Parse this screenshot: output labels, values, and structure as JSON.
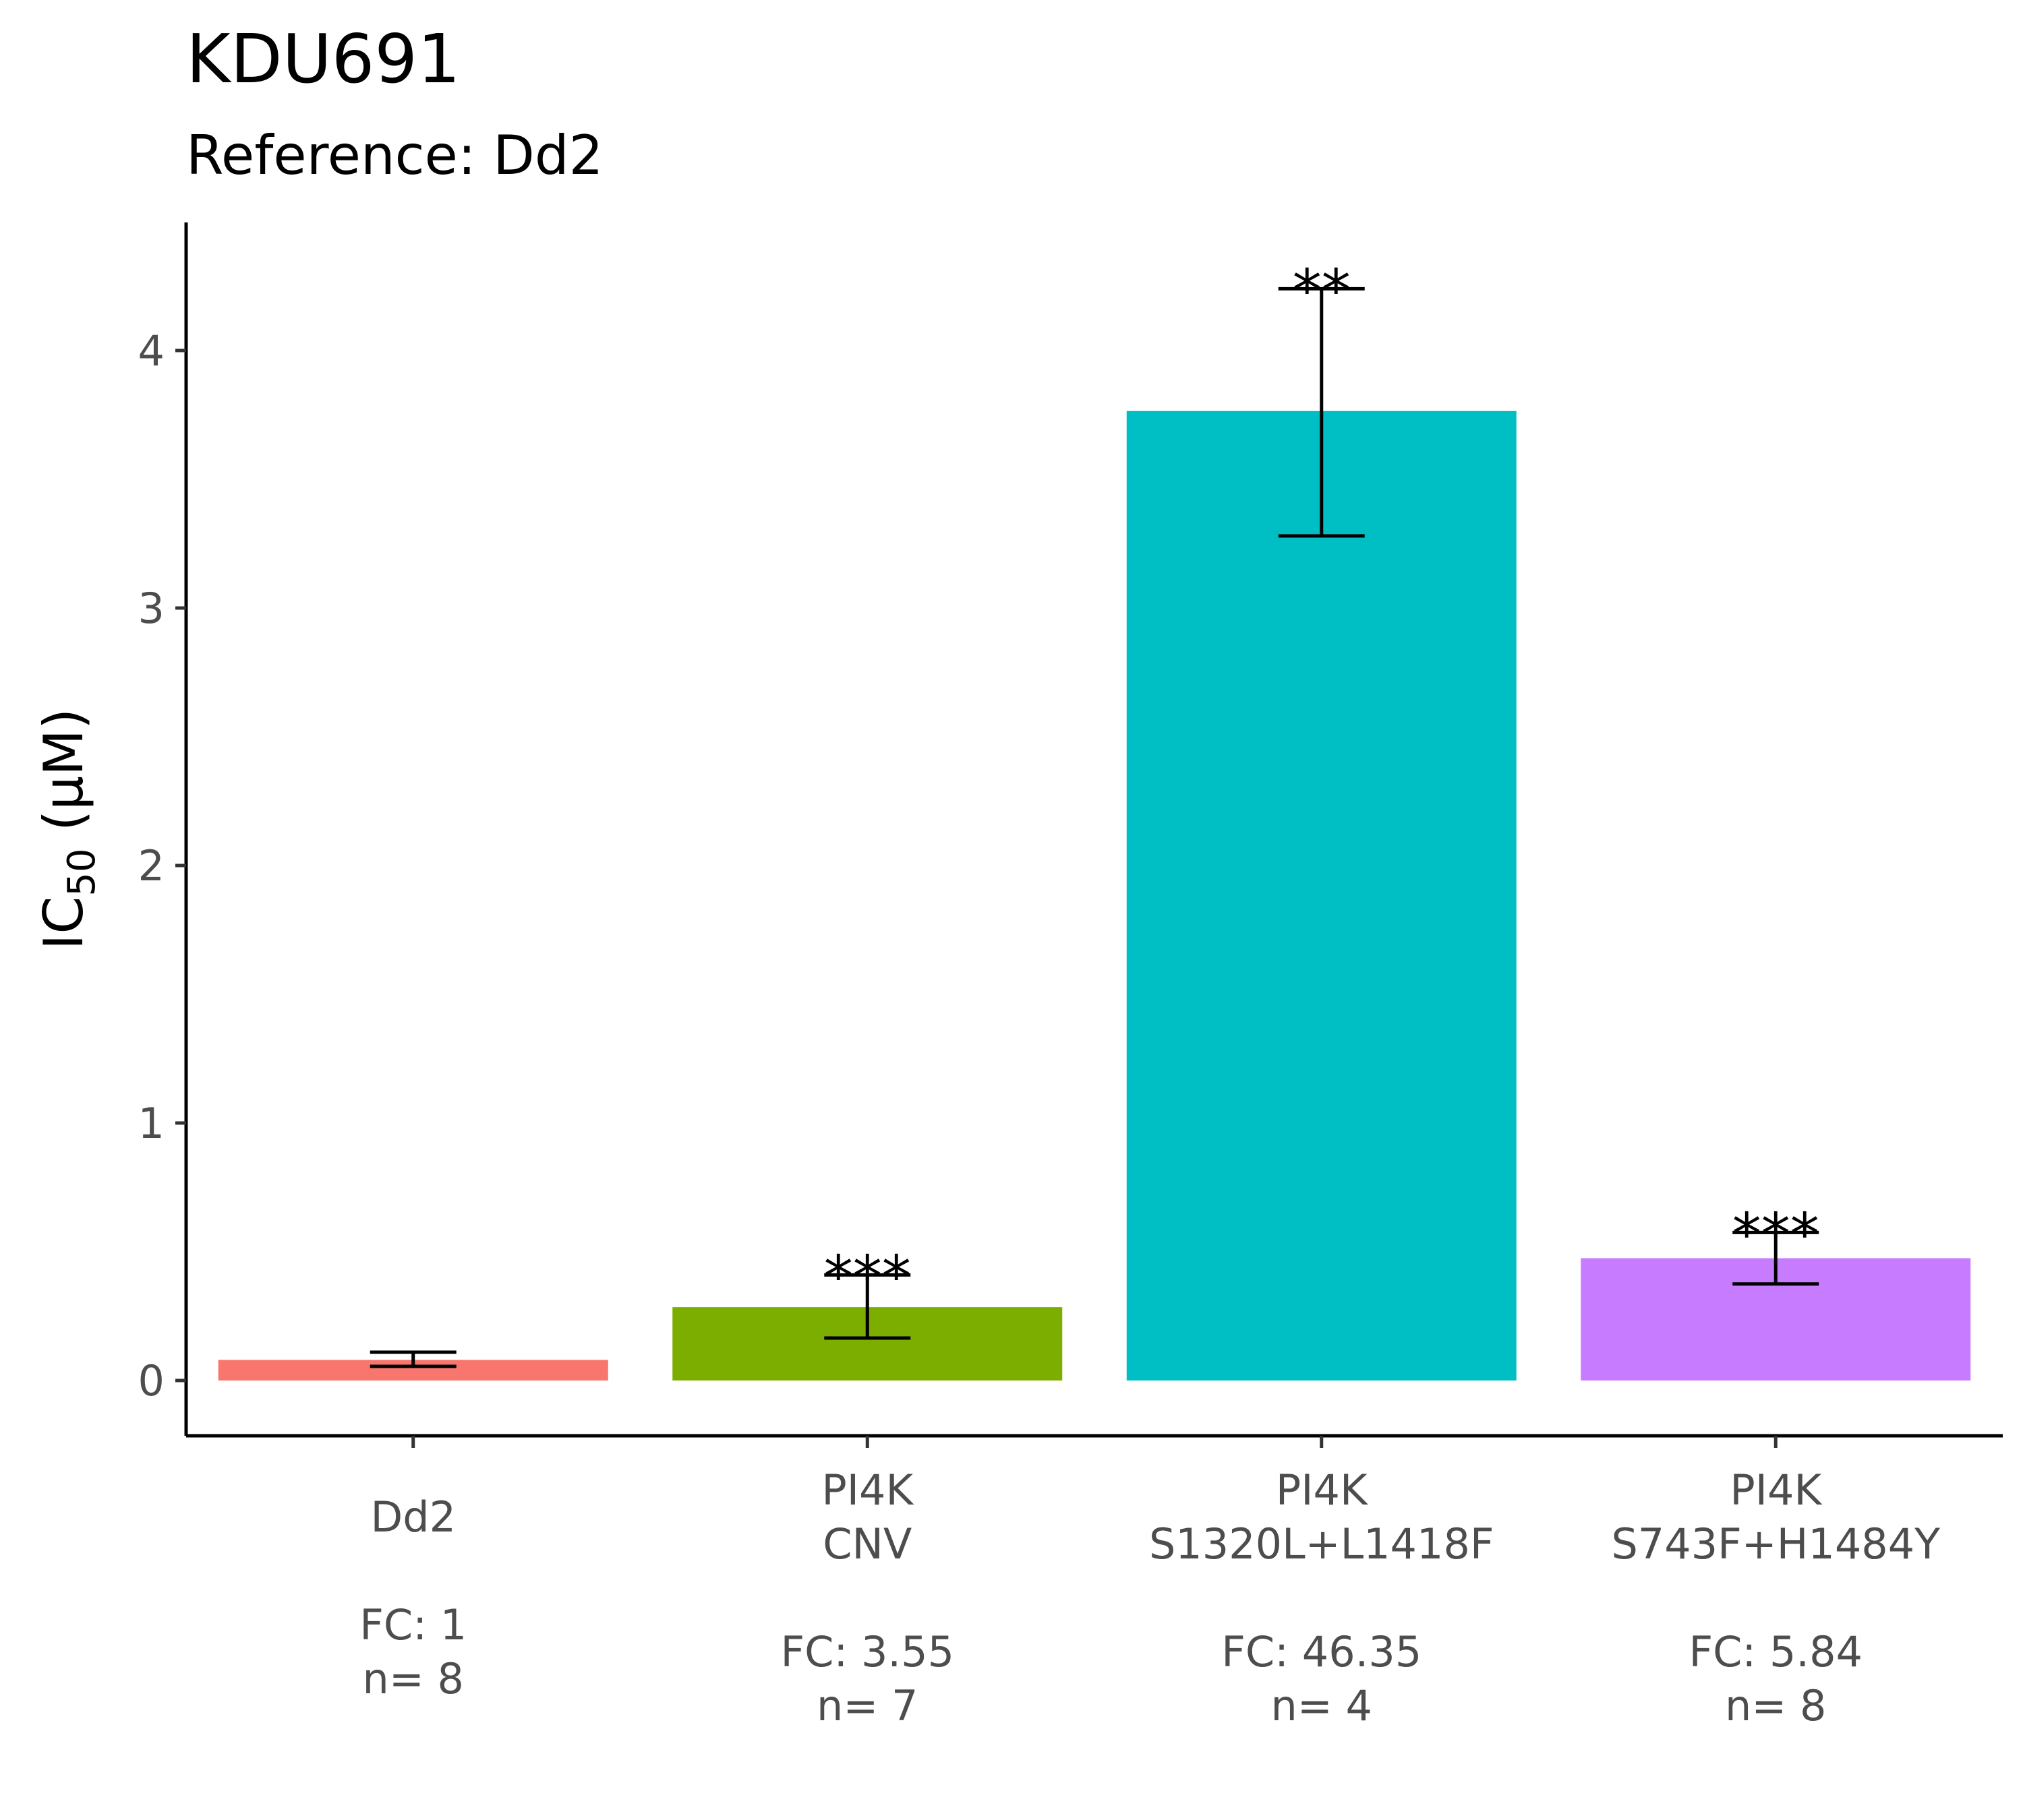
{
  "chart_data": {
    "type": "bar",
    "title": "KDU691",
    "subtitle": "Reference: Dd2",
    "ylabel": "IC",
    "ylabel_sub": "50",
    "ylabel_unit": " (μM)",
    "ylim": [
      -0.21,
      4.5
    ],
    "yticks": [
      0,
      1,
      2,
      3,
      4
    ],
    "grid": false,
    "legend": "none",
    "categories": [
      {
        "lines": [
          "Dd2"
        ],
        "fc": "FC: 1",
        "n": "n= 8"
      },
      {
        "lines": [
          "PI4K",
          "CNV"
        ],
        "fc": "FC: 3.55",
        "n": "n= 7"
      },
      {
        "lines": [
          "PI4K",
          "S1320L+L1418F"
        ],
        "fc": "FC: 46.35",
        "n": "n= 4"
      },
      {
        "lines": [
          "PI4K",
          "S743F+H1484Y"
        ],
        "fc": "FC: 5.84",
        "n": "n= 8"
      }
    ],
    "values": [
      0.08,
      0.285,
      3.765,
      0.475
    ],
    "error_low": [
      0.055,
      0.165,
      3.28,
      0.375
    ],
    "error_high": [
      0.11,
      0.41,
      4.24,
      0.575
    ],
    "significance": [
      "",
      "***",
      "**",
      "***"
    ],
    "colors": [
      "#f8766d",
      "#7cae00",
      "#00bfc4",
      "#c77cff"
    ]
  }
}
